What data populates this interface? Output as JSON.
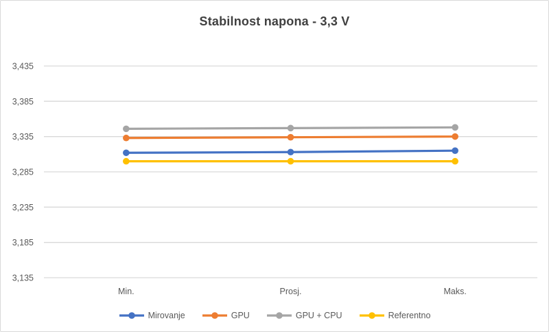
{
  "chart_data": {
    "type": "line",
    "title": "Stabilnost napona - 3,3 V",
    "categories": [
      "Min.",
      "Prosj.",
      "Maks."
    ],
    "series": [
      {
        "name": "Mirovanje",
        "color": "#4472C4",
        "values": [
          3.312,
          3.313,
          3.315
        ]
      },
      {
        "name": "GPU",
        "color": "#ED7D31",
        "values": [
          3.333,
          3.334,
          3.335
        ]
      },
      {
        "name": "GPU + CPU",
        "color": "#A5A5A5",
        "values": [
          3.346,
          3.347,
          3.348
        ]
      },
      {
        "name": "Referentno",
        "color": "#FFC000",
        "values": [
          3.3,
          3.3,
          3.3
        ]
      }
    ],
    "y_axis": {
      "min": 3.135,
      "max": 3.435,
      "step": 0.05,
      "tick_labels": [
        "3,135",
        "3,185",
        "3,235",
        "3,285",
        "3,335",
        "3,385",
        "3,435"
      ]
    },
    "x_axis": {
      "labels": [
        "Min.",
        "Prosj.",
        "Maks."
      ]
    },
    "grid": true,
    "legend": {
      "position": "bottom",
      "entries": [
        "Mirovanje",
        "GPU",
        "GPU + CPU",
        "Referentno"
      ]
    },
    "colors": {
      "gridline": "#D9D9D9",
      "axis_text": "#595959",
      "title_text": "#404040",
      "border": "#D9D9D9",
      "background": "#FFFFFF"
    }
  }
}
